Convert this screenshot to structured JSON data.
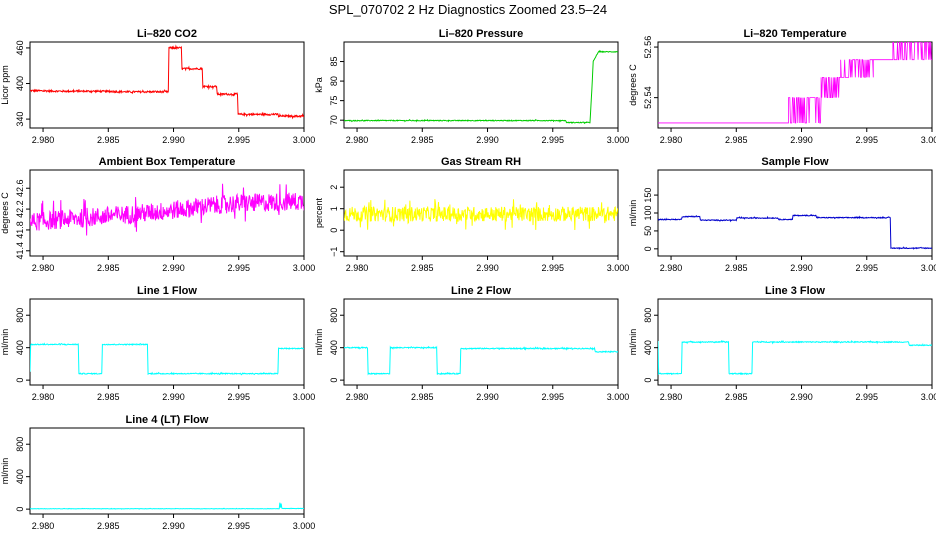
{
  "page": {
    "title": "SPL_070702  2 Hz Diagnostics Zoomed 23.5–24"
  },
  "chart_data": [
    {
      "type": "line",
      "title": "Li–820 CO2",
      "ylabel": "Licor ppm",
      "color": "#ff0000",
      "xlim": [
        2.979,
        3.0
      ],
      "ylim": [
        325,
        470
      ],
      "x_ticks": [
        "2.980",
        "2.985",
        "2.990",
        "2.995",
        "3.000"
      ],
      "y_ticks": [
        "340",
        "400",
        "460"
      ],
      "y_tick_values": [
        340,
        400,
        460
      ],
      "noise": 1.5,
      "series": [
        {
          "x": [
            2.979,
            2.9815,
            2.984,
            2.9865,
            2.9896,
            2.98965,
            2.9898,
            2.9906,
            2.99065,
            2.9922,
            2.99225,
            2.9933,
            2.99335,
            2.9949,
            2.99495,
            2.998,
            2.99805,
            3.0
          ],
          "y": [
            388,
            387,
            387,
            386,
            386,
            460,
            460,
            460,
            425,
            425,
            395,
            395,
            382,
            382,
            348,
            348,
            345,
            345
          ]
        }
      ]
    },
    {
      "type": "line",
      "title": "Li–820 Pressure",
      "ylabel": "kPa",
      "color": "#00cc00",
      "xlim": [
        2.979,
        3.0
      ],
      "ylim": [
        68,
        90
      ],
      "x_ticks": [
        "2.980",
        "2.985",
        "2.990",
        "2.995",
        "3.000"
      ],
      "y_ticks": [
        "70",
        "75",
        "80",
        "85"
      ],
      "y_tick_values": [
        70,
        75,
        80,
        85
      ],
      "noise": 0.1,
      "series": [
        {
          "x": [
            2.979,
            2.996,
            2.99605,
            2.99785,
            2.998,
            2.9981,
            2.9985,
            3.0
          ],
          "y": [
            69.9,
            69.9,
            69.4,
            69.4,
            78,
            85,
            87.5,
            87.5
          ]
        }
      ]
    },
    {
      "type": "line",
      "title": "Li–820 Temperature",
      "ylabel": "degrees C",
      "color": "#ff00ff",
      "xlim": [
        2.979,
        3.0
      ],
      "ylim": [
        52.528,
        52.562
      ],
      "x_ticks": [
        "2.980",
        "2.985",
        "2.990",
        "2.995",
        "3.000"
      ],
      "y_ticks": [
        "52.54",
        "52.56"
      ],
      "y_tick_values": [
        52.54,
        52.56
      ],
      "step_bands": [
        {
          "x0": 2.979,
          "x1": 2.989,
          "levels": [
            52.53
          ]
        },
        {
          "x0": 2.989,
          "x1": 2.9915,
          "levels": [
            52.53,
            52.54
          ]
        },
        {
          "x0": 2.9915,
          "x1": 2.993,
          "levels": [
            52.54,
            52.548
          ]
        },
        {
          "x0": 2.993,
          "x1": 2.9955,
          "levels": [
            52.548,
            52.555
          ]
        },
        {
          "x0": 2.9955,
          "x1": 2.997,
          "levels": [
            52.555
          ]
        },
        {
          "x0": 2.997,
          "x1": 3.0,
          "levels": [
            52.555,
            52.562
          ]
        }
      ]
    },
    {
      "type": "line",
      "title": "Ambient Box Temperature",
      "ylabel": "degrees C",
      "color": "#ff00ff",
      "xlim": [
        2.979,
        3.0
      ],
      "ylim": [
        41.3,
        42.95
      ],
      "x_ticks": [
        "2.980",
        "2.985",
        "2.990",
        "2.995",
        "3.000"
      ],
      "y_ticks": [
        "41.4",
        "41.8",
        "42.2",
        "42.6"
      ],
      "y_tick_values": [
        41.4,
        41.8,
        42.2,
        42.6
      ],
      "noise": 0.18,
      "series": [
        {
          "x": [
            2.979,
            2.984,
            2.989,
            2.994,
            3.0
          ],
          "y": [
            41.95,
            42.05,
            42.15,
            42.3,
            42.35
          ]
        }
      ]
    },
    {
      "type": "line",
      "title": "Gas Stream RH",
      "ylabel": "percent",
      "color": "#ffff00",
      "xlim": [
        2.979,
        3.0
      ],
      "ylim": [
        -1.2,
        2.8
      ],
      "x_ticks": [
        "2.980",
        "2.985",
        "2.990",
        "2.995",
        "3.000"
      ],
      "y_ticks": [
        "−1",
        "0",
        "1",
        "2"
      ],
      "y_tick_values": [
        -1,
        0,
        1,
        2
      ],
      "noise": 0.35,
      "series": [
        {
          "x": [
            2.979,
            3.0
          ],
          "y": [
            0.75,
            0.75
          ]
        }
      ]
    },
    {
      "type": "line",
      "title": "Sample Flow",
      "ylabel": "ml/min",
      "color": "#0000cc",
      "xlim": [
        2.979,
        3.0
      ],
      "ylim": [
        -20,
        220
      ],
      "x_ticks": [
        "2.980",
        "2.985",
        "2.990",
        "2.995",
        "3.000"
      ],
      "y_ticks": [
        "0",
        "50",
        "100",
        "150"
      ],
      "y_tick_values": [
        0,
        50,
        100,
        150
      ],
      "noise": 1.2,
      "series": [
        {
          "x": [
            2.979,
            2.9808,
            2.98085,
            2.9822,
            2.98225,
            2.985,
            2.98505,
            2.9882,
            2.98825,
            2.9893,
            2.98935,
            2.9911,
            2.99115,
            2.9968,
            2.99685,
            3.0
          ],
          "y": [
            82,
            82,
            90,
            90,
            80,
            80,
            86,
            86,
            82,
            82,
            93,
            93,
            87,
            87,
            2,
            2
          ]
        }
      ]
    },
    {
      "type": "line",
      "title": "Line 1 Flow",
      "ylabel": "ml/min",
      "color": "#00ffff",
      "xlim": [
        2.979,
        3.0
      ],
      "ylim": [
        -60,
        1000
      ],
      "x_ticks": [
        "2.980",
        "2.985",
        "2.990",
        "2.995",
        "3.000"
      ],
      "y_ticks": [
        "0",
        "400",
        "800"
      ],
      "y_tick_values": [
        0,
        400,
        800
      ],
      "noise": 6,
      "series": [
        {
          "x": [
            2.979,
            2.97905,
            2.9827,
            2.98275,
            2.9845,
            2.98455,
            2.988,
            2.98805,
            2.998,
            2.99805,
            3.0
          ],
          "y": [
            100,
            440,
            440,
            80,
            80,
            440,
            440,
            80,
            80,
            390,
            390
          ]
        }
      ]
    },
    {
      "type": "line",
      "title": "Line 2 Flow",
      "ylabel": "ml/min",
      "color": "#00ffff",
      "xlim": [
        2.979,
        3.0
      ],
      "ylim": [
        -60,
        1000
      ],
      "x_ticks": [
        "2.980",
        "2.985",
        "2.990",
        "2.995",
        "3.000"
      ],
      "y_ticks": [
        "0",
        "400",
        "800"
      ],
      "y_tick_values": [
        0,
        400,
        800
      ],
      "noise": 6,
      "series": [
        {
          "x": [
            2.979,
            2.9808,
            2.98085,
            2.9825,
            2.98255,
            2.9861,
            2.98615,
            2.9879,
            2.98795,
            2.9982,
            2.99825,
            3.0
          ],
          "y": [
            400,
            400,
            80,
            80,
            400,
            400,
            80,
            80,
            390,
            390,
            350,
            350
          ]
        }
      ]
    },
    {
      "type": "line",
      "title": "Line 3 Flow",
      "ylabel": "ml/min",
      "color": "#00ffff",
      "xlim": [
        2.979,
        3.0
      ],
      "ylim": [
        -60,
        1000
      ],
      "x_ticks": [
        "2.980",
        "2.985",
        "2.990",
        "2.995",
        "3.000"
      ],
      "y_ticks": [
        "0",
        "400",
        "800"
      ],
      "y_tick_values": [
        0,
        400,
        800
      ],
      "noise": 6,
      "series": [
        {
          "x": [
            2.979,
            2.97905,
            2.9808,
            2.98085,
            2.9844,
            2.98445,
            2.9862,
            2.98625,
            2.9982,
            2.99825,
            3.0
          ],
          "y": [
            480,
            80,
            80,
            470,
            470,
            80,
            80,
            470,
            470,
            430,
            430
          ]
        }
      ]
    },
    {
      "type": "line",
      "title": "Line 4 (LT) Flow",
      "ylabel": "ml/min",
      "color": "#00ffff",
      "xlim": [
        2.979,
        3.0
      ],
      "ylim": [
        -60,
        1000
      ],
      "x_ticks": [
        "2.980",
        "2.985",
        "2.990",
        "2.995",
        "3.000"
      ],
      "y_ticks": [
        "0",
        "400",
        "800"
      ],
      "y_tick_values": [
        0,
        400,
        800
      ],
      "noise": 2,
      "series": [
        {
          "x": [
            2.979,
            2.9981,
            2.99815,
            2.9982,
            2.99825,
            2.9983,
            3.0
          ],
          "y": [
            5,
            5,
            80,
            20,
            70,
            8,
            8
          ]
        }
      ]
    }
  ]
}
